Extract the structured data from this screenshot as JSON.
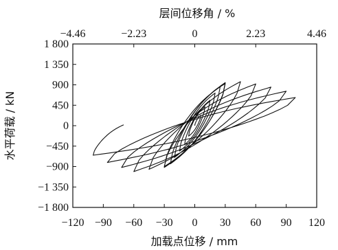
{
  "chart_data": {
    "type": "line",
    "title": "",
    "xlabel": "加载点位移 / mm",
    "ylabel": "水平荷载 / kN",
    "x2label": "层间位移角 / %",
    "xlim": [
      -120,
      120
    ],
    "ylim": [
      -1800,
      1800
    ],
    "x_ticks": [
      -120,
      -90,
      -60,
      -30,
      0,
      30,
      60,
      90,
      120
    ],
    "x_tick_labels": [
      "−120",
      "−90",
      "−60",
      "−30",
      "0",
      "30",
      "60",
      "90",
      "120"
    ],
    "y_ticks": [
      1800,
      1350,
      900,
      450,
      0,
      -450,
      -900,
      -1350,
      -1800
    ],
    "y_tick_labels": [
      "1 800",
      "1 350",
      "900",
      "450",
      "0",
      "−450",
      "−900",
      "−1 350",
      "−1 800"
    ],
    "x2_ticks": [
      -4.46,
      -2.23,
      0,
      2.23,
      4.46
    ],
    "x2_tick_labels": [
      "−4.46",
      "−2.23",
      "0",
      "2.23",
      "4.46"
    ],
    "grid": false,
    "legend": "none",
    "series": [
      {
        "label": "hysteresis",
        "loops": [
          {
            "pos_peak": [
              6,
              230
            ],
            "neg_peak": [
              -6,
              -230
            ]
          },
          {
            "pos_peak": [
              10,
              420
            ],
            "neg_peak": [
              -10,
              -420
            ]
          },
          {
            "pos_peak": [
              15,
              560
            ],
            "neg_peak": [
              -15,
              -560
            ]
          },
          {
            "pos_peak": [
              20,
              720
            ],
            "neg_peak": [
              -20,
              -700
            ]
          },
          {
            "pos_peak": [
              25,
              860
            ],
            "neg_peak": [
              -24,
              -840
            ]
          },
          {
            "pos_peak": [
              30,
              950
            ],
            "neg_peak": [
              -30,
              -920
            ]
          },
          {
            "pos_peak": [
              30,
              930
            ],
            "neg_peak": [
              -30,
              -900
            ]
          },
          {
            "pos_peak": [
              45,
              970
            ],
            "neg_peak": [
              -45,
              -960
            ]
          },
          {
            "pos_peak": [
              60,
              920
            ],
            "neg_peak": [
              -60,
              -1010
            ]
          },
          {
            "pos_peak": [
              75,
              850
            ],
            "neg_peak": [
              -72,
              -920
            ]
          },
          {
            "pos_peak": [
              90,
              760
            ],
            "neg_peak": [
              -86,
              -810
            ]
          },
          {
            "pos_peak": [
              99,
              620
            ],
            "neg_peak": [
              -100,
              -650
            ]
          }
        ],
        "end_point": [
          -70,
          20
        ]
      }
    ]
  }
}
